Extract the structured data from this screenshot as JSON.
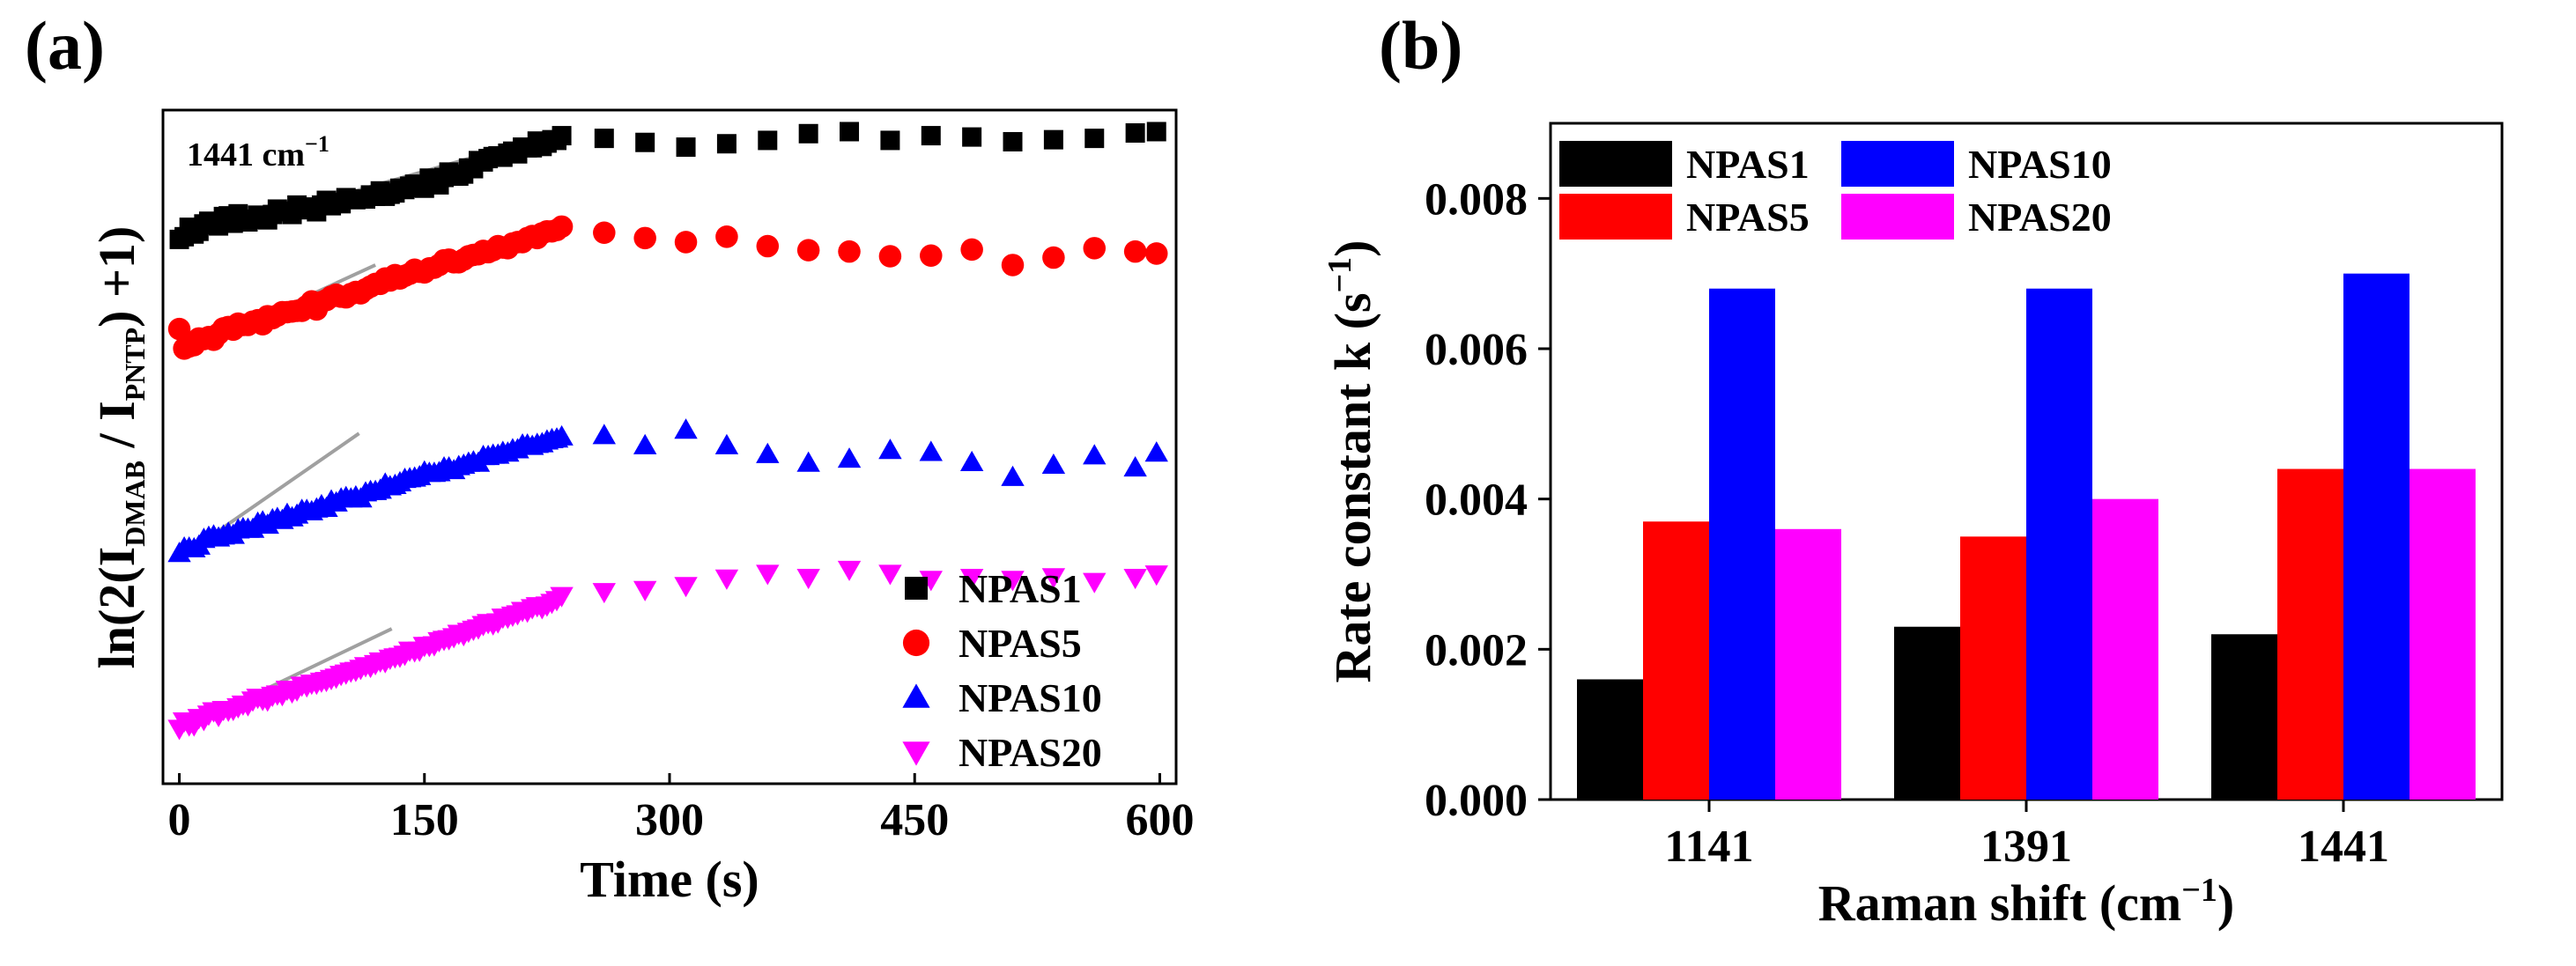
{
  "chart_data": [
    {
      "panel_label": "(a)",
      "type": "scatter",
      "annotation": {
        "base": "1441 cm",
        "sup": "−1"
      },
      "xlabel": "Time (s)",
      "ylabel": {
        "prefix": "ln(2(I",
        "sub1": "DMAB",
        "middle": " / I",
        "sub2": "PNTP",
        "suffix": ") +1)"
      },
      "xlim": [
        -10,
        610
      ],
      "ylim": [
        0,
        1
      ],
      "xticks": [
        0,
        150,
        300,
        450,
        600
      ],
      "y_tick_labels_shown": false,
      "legend_position": "bottom-right",
      "series": [
        {
          "name": "NPAS1",
          "marker": "square",
          "color": "#000000",
          "x": [
            0,
            3,
            6,
            9,
            12,
            15,
            18,
            21,
            24,
            27,
            30,
            33,
            36,
            39,
            42,
            45,
            48,
            51,
            54,
            57,
            60,
            63,
            66,
            69,
            72,
            75,
            78,
            81,
            84,
            87,
            90,
            93,
            96,
            99,
            102,
            105,
            108,
            111,
            114,
            117,
            120,
            123,
            126,
            129,
            132,
            135,
            138,
            141,
            144,
            147,
            150,
            153,
            156,
            159,
            162,
            165,
            168,
            171,
            174,
            177,
            180,
            183,
            186,
            189,
            192,
            195,
            198,
            201,
            204,
            207,
            210,
            213,
            216,
            219,
            222,
            225,
            228,
            231,
            234,
            260,
            285,
            310,
            335,
            360,
            385,
            410,
            435,
            460,
            485,
            510,
            535,
            560,
            585,
            598
          ],
          "y": [
            0.808,
            0.812,
            0.826,
            0.816,
            0.82,
            0.831,
            0.835,
            0.83,
            0.828,
            0.842,
            0.843,
            0.832,
            0.846,
            0.838,
            0.834,
            0.838,
            0.844,
            0.843,
            0.837,
            0.845,
            0.853,
            0.849,
            0.85,
            0.845,
            0.859,
            0.856,
            0.852,
            0.856,
            0.849,
            0.859,
            0.866,
            0.858,
            0.863,
            0.861,
            0.87,
            0.868,
            0.867,
            0.868,
            0.868,
            0.874,
            0.872,
            0.88,
            0.872,
            0.875,
            0.877,
            0.884,
            0.882,
            0.887,
            0.89,
            0.885,
            0.884,
            0.899,
            0.892,
            0.889,
            0.9,
            0.908,
            0.902,
            0.902,
            0.905,
            0.914,
            0.913,
            0.925,
            0.923,
            0.928,
            0.931,
            0.932,
            0.93,
            0.936,
            0.939,
            0.935,
            0.945,
            0.944,
            0.944,
            0.954,
            0.946,
            0.951,
            0.956,
            0.955,
            0.962,
            0.958,
            0.952,
            0.945,
            0.95,
            0.955,
            0.965,
            0.968,
            0.955,
            0.962,
            0.96,
            0.953,
            0.956,
            0.958,
            0.966,
            0.968
          ]
        },
        {
          "name": "NPAS5",
          "marker": "circle",
          "color": "#ff0000",
          "x": [
            0,
            3,
            6,
            9,
            12,
            15,
            18,
            21,
            24,
            27,
            30,
            33,
            36,
            39,
            42,
            45,
            48,
            51,
            54,
            57,
            60,
            63,
            66,
            69,
            72,
            75,
            78,
            81,
            84,
            87,
            90,
            93,
            96,
            99,
            102,
            105,
            108,
            111,
            114,
            117,
            120,
            123,
            126,
            129,
            132,
            135,
            138,
            141,
            144,
            147,
            150,
            153,
            156,
            159,
            162,
            165,
            168,
            171,
            174,
            177,
            180,
            183,
            186,
            189,
            192,
            195,
            198,
            201,
            204,
            207,
            210,
            213,
            216,
            219,
            222,
            225,
            228,
            231,
            234,
            260,
            285,
            310,
            335,
            360,
            385,
            410,
            435,
            460,
            485,
            510,
            535,
            560,
            585,
            598
          ],
          "y": [
            0.675,
            0.646,
            0.649,
            0.651,
            0.661,
            0.66,
            0.663,
            0.659,
            0.668,
            0.676,
            0.678,
            0.674,
            0.683,
            0.681,
            0.681,
            0.686,
            0.688,
            0.682,
            0.694,
            0.691,
            0.695,
            0.7,
            0.7,
            0.701,
            0.702,
            0.702,
            0.709,
            0.716,
            0.704,
            0.715,
            0.718,
            0.723,
            0.726,
            0.723,
            0.722,
            0.727,
            0.73,
            0.728,
            0.734,
            0.738,
            0.742,
            0.742,
            0.75,
            0.747,
            0.755,
            0.75,
            0.754,
            0.757,
            0.763,
            0.76,
            0.759,
            0.765,
            0.766,
            0.77,
            0.777,
            0.778,
            0.774,
            0.774,
            0.778,
            0.783,
            0.785,
            0.786,
            0.791,
            0.789,
            0.792,
            0.798,
            0.796,
            0.795,
            0.802,
            0.804,
            0.804,
            0.81,
            0.813,
            0.81,
            0.817,
            0.82,
            0.82,
            0.822,
            0.827,
            0.818,
            0.81,
            0.804,
            0.812,
            0.798,
            0.792,
            0.79,
            0.783,
            0.784,
            0.793,
            0.77,
            0.781,
            0.795,
            0.79,
            0.787
          ]
        },
        {
          "name": "NPAS10",
          "marker": "triangle-up",
          "color": "#0000ff",
          "x": [
            0,
            3,
            6,
            9,
            12,
            15,
            18,
            21,
            24,
            27,
            30,
            33,
            36,
            39,
            42,
            45,
            48,
            51,
            54,
            57,
            60,
            63,
            66,
            69,
            72,
            75,
            78,
            81,
            84,
            87,
            90,
            93,
            96,
            99,
            102,
            105,
            108,
            111,
            114,
            117,
            120,
            123,
            126,
            129,
            132,
            135,
            138,
            141,
            144,
            147,
            150,
            153,
            156,
            159,
            162,
            165,
            168,
            171,
            174,
            177,
            180,
            183,
            186,
            189,
            192,
            195,
            198,
            201,
            204,
            207,
            210,
            213,
            216,
            219,
            222,
            225,
            228,
            231,
            234,
            260,
            285,
            310,
            335,
            360,
            385,
            410,
            435,
            460,
            485,
            510,
            535,
            560,
            585,
            598
          ],
          "y": [
            0.342,
            0.35,
            0.35,
            0.349,
            0.353,
            0.363,
            0.366,
            0.368,
            0.365,
            0.368,
            0.372,
            0.369,
            0.377,
            0.379,
            0.378,
            0.378,
            0.387,
            0.389,
            0.384,
            0.392,
            0.394,
            0.391,
            0.4,
            0.395,
            0.399,
            0.406,
            0.406,
            0.404,
            0.408,
            0.413,
            0.409,
            0.42,
            0.417,
            0.423,
            0.425,
            0.423,
            0.426,
            0.423,
            0.432,
            0.434,
            0.434,
            0.436,
            0.445,
            0.441,
            0.443,
            0.447,
            0.452,
            0.453,
            0.454,
            0.456,
            0.463,
            0.461,
            0.461,
            0.462,
            0.469,
            0.469,
            0.465,
            0.471,
            0.473,
            0.476,
            0.478,
            0.476,
            0.486,
            0.486,
            0.488,
            0.488,
            0.492,
            0.491,
            0.496,
            0.496,
            0.503,
            0.503,
            0.501,
            0.504,
            0.505,
            0.509,
            0.511,
            0.512,
            0.515,
            0.517,
            0.502,
            0.525,
            0.502,
            0.489,
            0.476,
            0.482,
            0.495,
            0.492,
            0.477,
            0.455,
            0.473,
            0.487,
            0.469,
            0.491
          ]
        },
        {
          "name": "NPAS20",
          "marker": "triangle-down",
          "color": "#ff00ff",
          "x": [
            0,
            3,
            6,
            9,
            12,
            15,
            18,
            21,
            24,
            27,
            30,
            33,
            36,
            39,
            42,
            45,
            48,
            51,
            54,
            57,
            60,
            63,
            66,
            69,
            72,
            75,
            78,
            81,
            84,
            87,
            90,
            93,
            96,
            99,
            102,
            105,
            108,
            111,
            114,
            117,
            120,
            123,
            126,
            129,
            132,
            135,
            138,
            141,
            144,
            147,
            150,
            153,
            156,
            159,
            162,
            165,
            168,
            171,
            174,
            177,
            180,
            183,
            186,
            189,
            192,
            195,
            198,
            201,
            204,
            207,
            210,
            213,
            216,
            219,
            222,
            225,
            228,
            231,
            234,
            260,
            285,
            310,
            335,
            360,
            385,
            410,
            435,
            460,
            485,
            510,
            535,
            560,
            585,
            598
          ],
          "y": [
            0.082,
            0.093,
            0.087,
            0.087,
            0.098,
            0.095,
            0.103,
            0.108,
            0.101,
            0.11,
            0.109,
            0.11,
            0.114,
            0.118,
            0.117,
            0.124,
            0.128,
            0.125,
            0.124,
            0.131,
            0.133,
            0.132,
            0.14,
            0.136,
            0.139,
            0.146,
            0.145,
            0.149,
            0.149,
            0.152,
            0.153,
            0.156,
            0.158,
            0.162,
            0.164,
            0.167,
            0.168,
            0.171,
            0.175,
            0.174,
            0.178,
            0.182,
            0.181,
            0.186,
            0.188,
            0.189,
            0.192,
            0.198,
            0.197,
            0.198,
            0.205,
            0.205,
            0.206,
            0.212,
            0.214,
            0.215,
            0.218,
            0.223,
            0.221,
            0.226,
            0.229,
            0.231,
            0.236,
            0.239,
            0.237,
            0.24,
            0.247,
            0.247,
            0.25,
            0.252,
            0.257,
            0.256,
            0.261,
            0.264,
            0.261,
            0.265,
            0.269,
            0.273,
            0.279,
            0.285,
            0.288,
            0.294,
            0.305,
            0.312,
            0.306,
            0.318,
            0.312,
            0.303,
            0.306,
            0.303,
            0.307,
            0.3,
            0.306,
            0.311
          ]
        }
      ],
      "fit_lines": [
        {
          "series": "NPAS1",
          "x": [
            0,
            180
          ],
          "y": [
            0.805,
            0.93
          ],
          "color": "#a0a0a0"
        },
        {
          "series": "NPAS5",
          "x": [
            0,
            120
          ],
          "y": [
            0.636,
            0.77
          ],
          "color": "#a0a0a0"
        },
        {
          "series": "NPAS10",
          "x": [
            0,
            110
          ],
          "y": [
            0.335,
            0.52
          ],
          "color": "#a0a0a0"
        },
        {
          "series": "NPAS20",
          "x": [
            0,
            130
          ],
          "y": [
            0.079,
            0.23
          ],
          "color": "#a0a0a0"
        }
      ]
    },
    {
      "panel_label": "(b)",
      "type": "bar",
      "categories": [
        "1141",
        "1391",
        "1441"
      ],
      "series": [
        {
          "name": "NPAS1",
          "color": "#000000",
          "values": [
            0.0016,
            0.0023,
            0.0022
          ]
        },
        {
          "name": "NPAS5",
          "color": "#ff0000",
          "values": [
            0.0037,
            0.0035,
            0.0044
          ]
        },
        {
          "name": "NPAS10",
          "color": "#0000ff",
          "values": [
            0.0068,
            0.0068,
            0.007
          ]
        },
        {
          "name": "NPAS20",
          "color": "#ff00ff",
          "values": [
            0.0036,
            0.004,
            0.0044
          ]
        }
      ],
      "xlabel": {
        "text": "Raman shift (cm",
        "sup": "−1",
        "close": ")"
      },
      "ylabel": {
        "text": "Rate constant k (s",
        "sup": "−1",
        "close": ")"
      },
      "ylim": [
        0,
        0.009
      ],
      "yticks": [
        "0.000",
        "0.002",
        "0.004",
        "0.006",
        "0.008"
      ],
      "legend_position": "top-left"
    }
  ]
}
